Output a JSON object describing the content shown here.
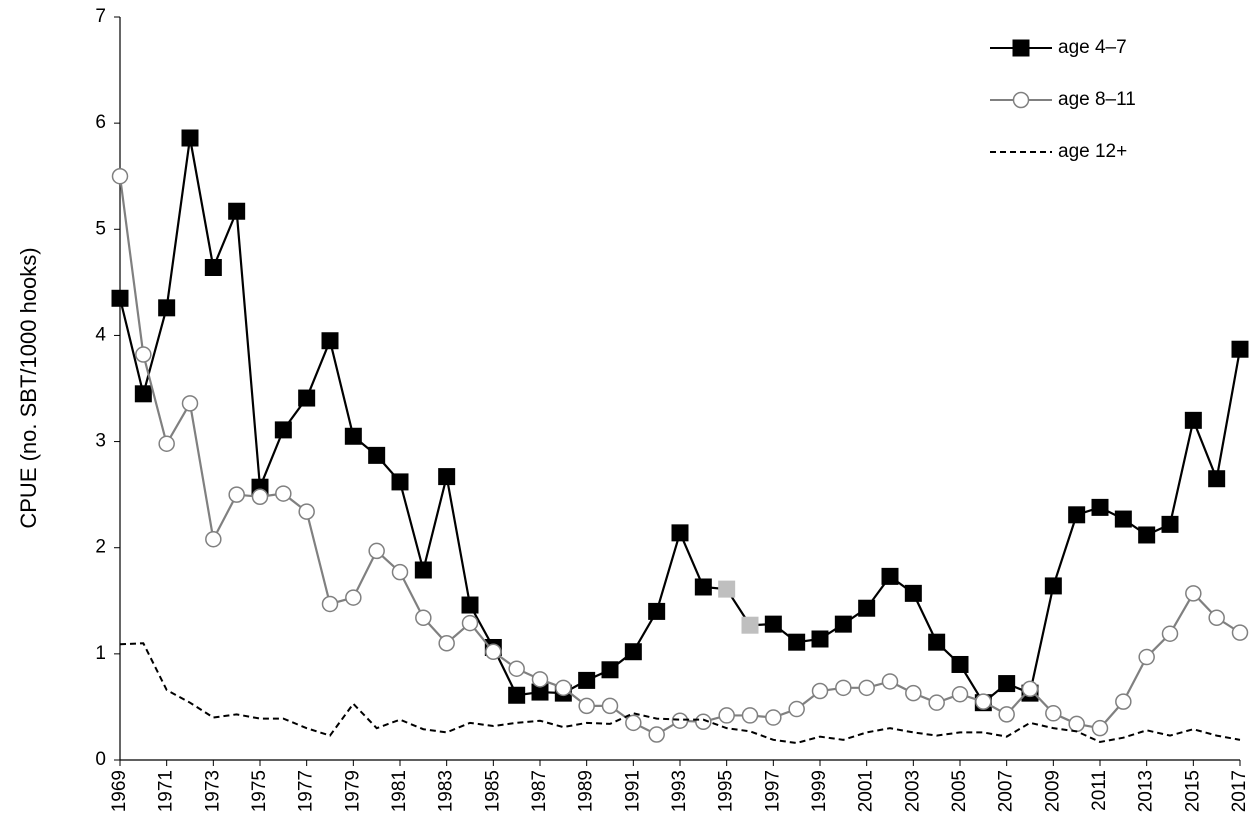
{
  "chart_data": {
    "type": "line",
    "ylabel": "CPUE (no. SBT/1000 hooks)",
    "x": [
      1969,
      1970,
      1971,
      1972,
      1973,
      1974,
      1975,
      1976,
      1977,
      1978,
      1979,
      1980,
      1981,
      1982,
      1983,
      1984,
      1985,
      1986,
      1987,
      1988,
      1989,
      1990,
      1991,
      1992,
      1993,
      1994,
      1995,
      1996,
      1997,
      1998,
      1999,
      2000,
      2001,
      2002,
      2003,
      2004,
      2005,
      2006,
      2007,
      2008,
      2009,
      2010,
      2011,
      2012,
      2013,
      2014,
      2015,
      2016,
      2017
    ],
    "xlim": [
      1969,
      2017
    ],
    "xticks": [
      1969,
      1971,
      1973,
      1975,
      1977,
      1979,
      1981,
      1983,
      1985,
      1987,
      1989,
      1991,
      1993,
      1995,
      1997,
      1999,
      2001,
      2003,
      2005,
      2007,
      2009,
      2011,
      2013,
      2015,
      2017
    ],
    "ylim": [
      0,
      7
    ],
    "yticks": [
      0,
      1,
      2,
      3,
      4,
      5,
      6,
      7
    ],
    "grid": false,
    "legend": "top-right",
    "series": [
      {
        "name": "age 4–7",
        "color": "#000000",
        "marker": "square",
        "dash": false,
        "marker_colors": [
          "#000000",
          "#000000",
          "#000000",
          "#000000",
          "#000000",
          "#000000",
          "#000000",
          "#000000",
          "#000000",
          "#000000",
          "#000000",
          "#000000",
          "#000000",
          "#000000",
          "#000000",
          "#000000",
          "#000000",
          "#000000",
          "#000000",
          "#000000",
          "#000000",
          "#000000",
          "#000000",
          "#000000",
          "#000000",
          "#000000",
          "#bfbfbf",
          "#bfbfbf",
          "#000000",
          "#000000",
          "#000000",
          "#000000",
          "#000000",
          "#000000",
          "#000000",
          "#000000",
          "#000000",
          "#000000",
          "#000000",
          "#000000",
          "#000000",
          "#000000",
          "#000000",
          "#000000",
          "#000000",
          "#000000",
          "#000000",
          "#000000",
          "#000000"
        ],
        "values": [
          4.35,
          3.45,
          4.26,
          5.86,
          4.64,
          5.17,
          2.57,
          3.11,
          3.41,
          3.95,
          3.05,
          2.87,
          2.62,
          1.79,
          2.67,
          1.46,
          1.06,
          0.61,
          0.64,
          0.63,
          0.75,
          0.85,
          1.02,
          1.4,
          2.14,
          1.63,
          1.61,
          1.27,
          1.28,
          1.11,
          1.14,
          1.28,
          1.43,
          1.73,
          1.57,
          1.11,
          0.9,
          0.54,
          0.72,
          0.63,
          1.64,
          2.31,
          2.38,
          2.27,
          2.12,
          2.22,
          3.2,
          2.65,
          3.87
        ]
      },
      {
        "name": "age 8–11",
        "color": "#808080",
        "marker": "circle",
        "dash": false,
        "values": [
          5.5,
          3.82,
          2.98,
          3.36,
          2.08,
          2.5,
          2.48,
          2.51,
          2.34,
          1.47,
          1.53,
          1.97,
          1.77,
          1.34,
          1.1,
          1.29,
          1.02,
          0.86,
          0.76,
          0.68,
          0.51,
          0.51,
          0.35,
          0.24,
          0.37,
          0.36,
          0.42,
          0.42,
          0.4,
          0.48,
          0.65,
          0.68,
          0.68,
          0.74,
          0.63,
          0.54,
          0.62,
          0.55,
          0.43,
          0.67,
          0.44,
          0.34,
          0.3,
          0.55,
          0.97,
          1.19,
          1.57,
          1.34,
          1.2
        ]
      },
      {
        "name": "age 12+",
        "color": "#000000",
        "marker": "none",
        "dash": true,
        "values": [
          1.09,
          1.1,
          0.66,
          0.54,
          0.4,
          0.43,
          0.39,
          0.39,
          0.3,
          0.23,
          0.53,
          0.3,
          0.38,
          0.29,
          0.26,
          0.35,
          0.32,
          0.35,
          0.37,
          0.31,
          0.35,
          0.34,
          0.44,
          0.39,
          0.38,
          0.38,
          0.3,
          0.27,
          0.19,
          0.16,
          0.22,
          0.19,
          0.26,
          0.3,
          0.26,
          0.23,
          0.26,
          0.26,
          0.22,
          0.35,
          0.3,
          0.27,
          0.17,
          0.21,
          0.28,
          0.23,
          0.29,
          0.23,
          0.19
        ]
      }
    ]
  }
}
